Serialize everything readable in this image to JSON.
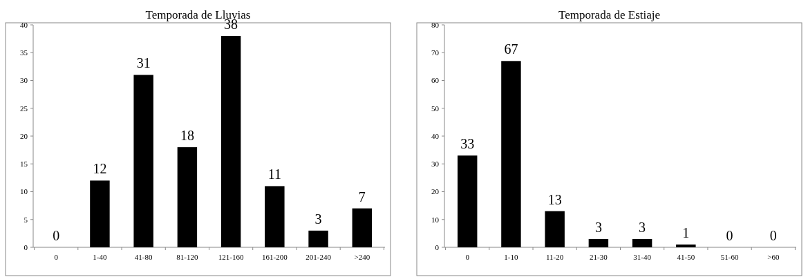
{
  "chart_data": [
    {
      "type": "bar",
      "title": "Temporada de Lluvias",
      "categories": [
        "0",
        "1-40",
        "41-80",
        "81-120",
        "121-160",
        "161-200",
        "201-240",
        ">240"
      ],
      "values": [
        0,
        12,
        31,
        18,
        38,
        11,
        3,
        7
      ],
      "color": "#000000",
      "ylim": [
        0,
        40
      ],
      "yticks": [
        0,
        5,
        10,
        15,
        20,
        25,
        30,
        35,
        40
      ],
      "data_labels": true
    },
    {
      "type": "bar",
      "title": "Temporada de Estiaje",
      "categories": [
        "0",
        "1-10",
        "11-20",
        "21-30",
        "31-40",
        "41-50",
        "51-60",
        ">60"
      ],
      "values": [
        33,
        67,
        13,
        3,
        3,
        1,
        0,
        0
      ],
      "color": "#000000",
      "ylim": [
        0,
        80
      ],
      "yticks": [
        0,
        10,
        20,
        30,
        40,
        50,
        60,
        70,
        80
      ],
      "data_labels": true
    }
  ]
}
